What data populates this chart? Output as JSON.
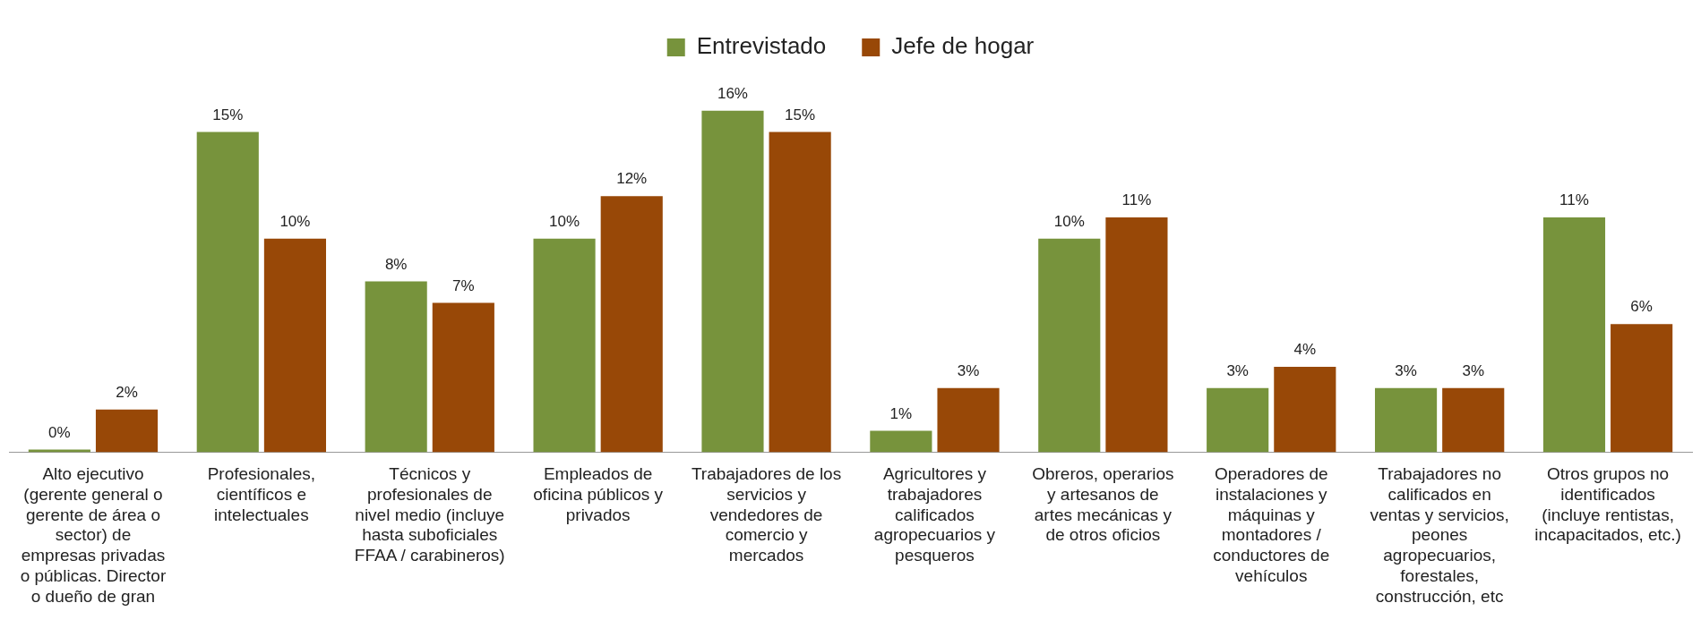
{
  "chart_data": {
    "type": "bar",
    "legend": "top",
    "categories": [
      "Alto ejecutivo (gerente general o gerente de área o sector) de empresas privadas o públicas. Director o dueño de gran",
      "Profesionales, científicos e intelectuales",
      "Técnicos y profesionales de nivel medio (incluye hasta suboficiales FFAA / carabineros)",
      "Empleados de oficina públicos y privados",
      "Trabajadores de los servicios y vendedores de comercio y mercados",
      "Agricultores y trabajadores calificados agropecuarios y pesqueros",
      "Obreros, operarios y artesanos de artes mecánicas y de otros oficios",
      "Operadores de instalaciones y máquinas y montadores / conductores de vehículos",
      "Trabajadores no calificados en ventas y servicios, peones agropecuarios, forestales, construcción, etc",
      "Otros grupos no identificados (incluye rentistas, incapacitados, etc.)"
    ],
    "series": [
      {
        "name": "Entrevistado",
        "color": "#77933c",
        "values": [
          0,
          15,
          8,
          10,
          16,
          1,
          10,
          3,
          3,
          11
        ],
        "value_labels": [
          "0%",
          "15%",
          "8%",
          "10%",
          "16%",
          "1%",
          "10%",
          "3%",
          "3%",
          "11%"
        ]
      },
      {
        "name": "Jefe de hogar",
        "color": "#984807",
        "values": [
          2,
          10,
          7,
          12,
          15,
          3,
          11,
          4,
          3,
          6
        ],
        "value_labels": [
          "2%",
          "10%",
          "7%",
          "12%",
          "15%",
          "3%",
          "11%",
          "4%",
          "3%",
          "6%"
        ]
      }
    ]
  }
}
